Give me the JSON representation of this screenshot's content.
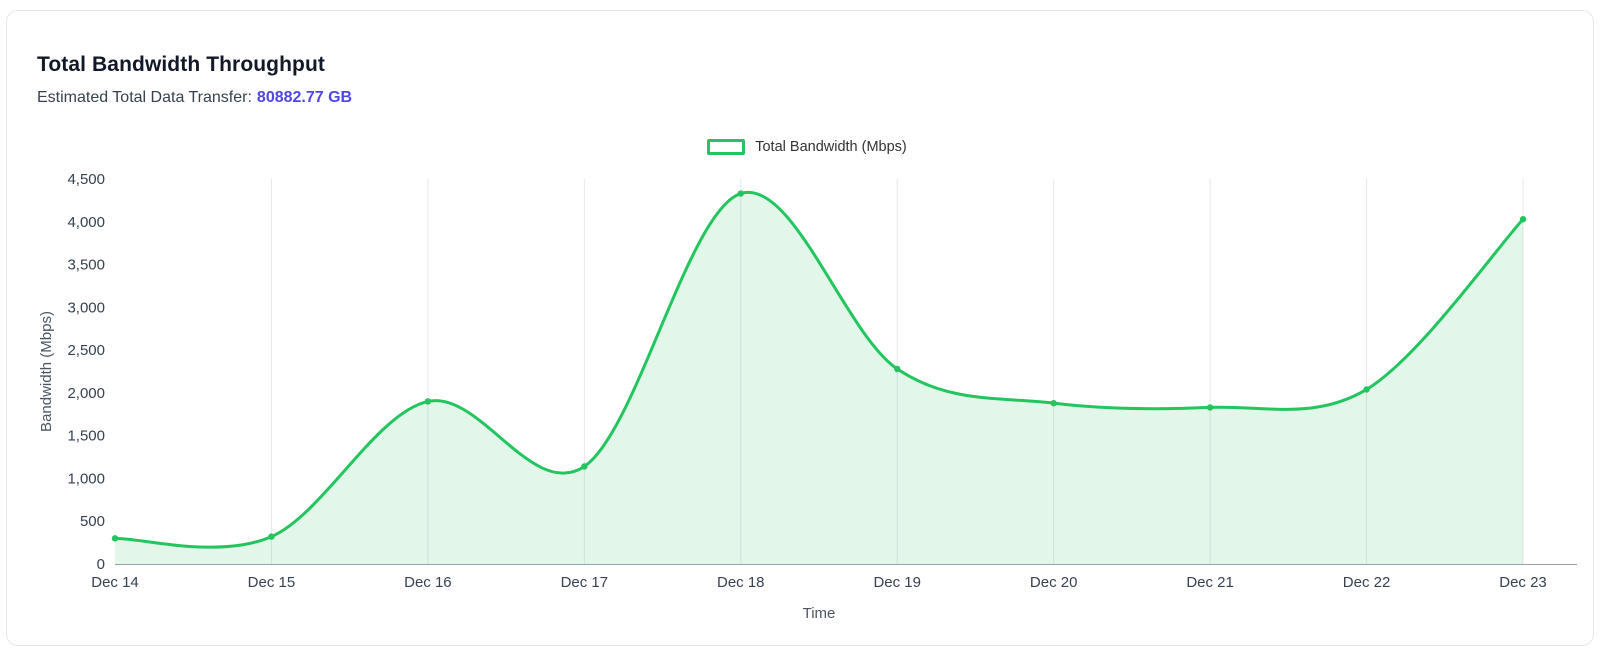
{
  "card": {
    "title": "Total Bandwidth Throughput",
    "subtitle_label": "Estimated Total Data Transfer:",
    "subtitle_value": "80882.77 GB"
  },
  "legend": {
    "label": "Total Bandwidth (Mbps)"
  },
  "colors": {
    "accent": "#4f46e5",
    "line": "#22c55e",
    "fill": "rgba(34,197,94,0.13)",
    "grid": "#e6e8eb",
    "axis": "#9aa1ab"
  },
  "chart_data": {
    "type": "area",
    "x": [
      "Dec 14",
      "Dec 15",
      "Dec 16",
      "Dec 17",
      "Dec 18",
      "Dec 19",
      "Dec 20",
      "Dec 21",
      "Dec 22",
      "Dec 23"
    ],
    "series": [
      {
        "name": "Total Bandwidth (Mbps)",
        "values": [
          300,
          320,
          1900,
          1140,
          4330,
          2280,
          1880,
          1830,
          2040,
          4030
        ]
      }
    ],
    "title": "Total Bandwidth Throughput",
    "xlabel": "Time",
    "ylabel": "Bandwidth (Mbps)",
    "ylim": [
      0,
      4500
    ],
    "ytick_step": 500,
    "grid": "vertical",
    "legend_position": "top-center",
    "smooth": true
  }
}
